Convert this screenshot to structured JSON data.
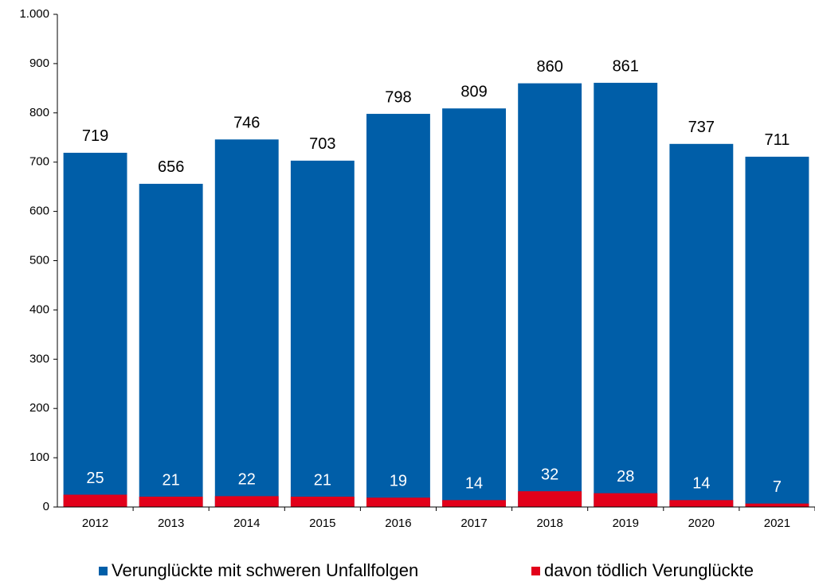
{
  "chart_data": {
    "type": "bar",
    "categories": [
      "2012",
      "2013",
      "2014",
      "2015",
      "2016",
      "2017",
      "2018",
      "2019",
      "2020",
      "2021"
    ],
    "series": [
      {
        "name": "Verunglückte mit schweren Unfallfolgen",
        "color": "#005ea8",
        "values": [
          719,
          656,
          746,
          703,
          798,
          809,
          860,
          861,
          737,
          711
        ]
      },
      {
        "name": "davon tödlich Verunglückte",
        "color": "#e2001a",
        "values": [
          25,
          21,
          22,
          21,
          19,
          14,
          32,
          28,
          14,
          7
        ]
      }
    ],
    "ylim": [
      0,
      1000
    ],
    "yticks": [
      0,
      100,
      200,
      300,
      400,
      500,
      600,
      700,
      800,
      900,
      {
        "value": 1000,
        "label": "1.000"
      }
    ],
    "legend": "bottom"
  }
}
